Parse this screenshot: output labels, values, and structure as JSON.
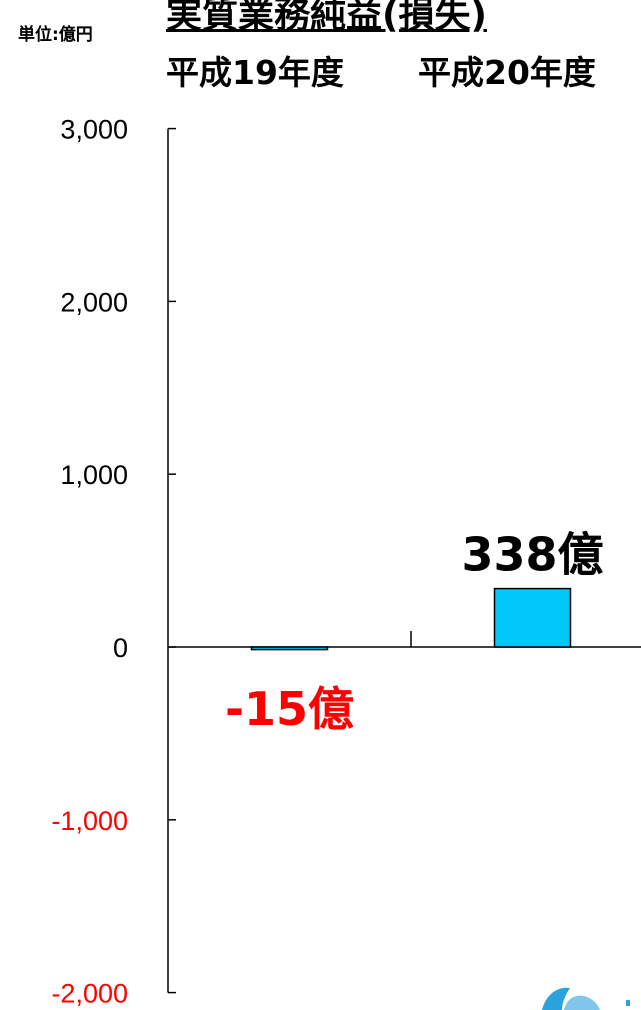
{
  "header": {
    "unit_label": "単位:億円",
    "title": "実質業務純益(損失)",
    "periods": [
      "平成19年度",
      "平成20年度"
    ]
  },
  "chart_data": {
    "type": "bar",
    "categories": [
      "平成19年度",
      "平成20年度"
    ],
    "values": [
      -15,
      338
    ],
    "data_labels": [
      "-15億",
      "338億"
    ],
    "ylim": [
      -2000,
      3000
    ],
    "yticks": [
      3000,
      2000,
      1000,
      0,
      -1000,
      -2000
    ],
    "ytick_labels": [
      "3,000",
      "2,000",
      "1,000",
      "0",
      "-1,000",
      "-2,000"
    ],
    "colors": {
      "bar": "#00c8f8",
      "bar_edge": "#000000",
      "negative_tick_label": "#ff0000",
      "positive_tick_label": "#000000",
      "negative_data_label": "#ff0000",
      "positive_data_label": "#000000"
    }
  }
}
